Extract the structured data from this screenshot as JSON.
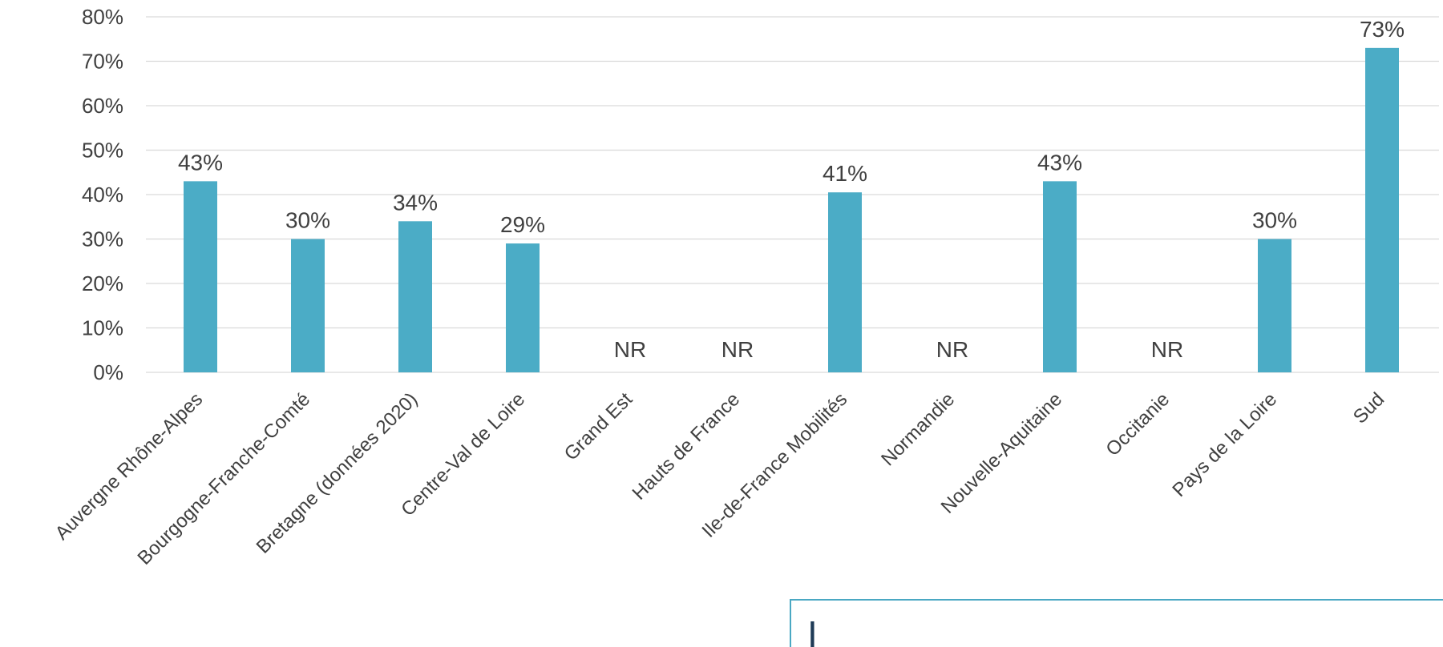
{
  "chart_data": {
    "type": "bar",
    "categories": [
      "Auvergne Rhône-Alpes",
      "Bourgogne-Franche-Comté",
      "Bretagne (données 2020)",
      "Centre-Val de Loire",
      "Grand Est",
      "Hauts de France",
      "Ile-de-France Mobilités",
      "Normandie",
      "Nouvelle-Aquitaine",
      "Occitanie",
      "Pays de la Loire",
      "Sud"
    ],
    "values": [
      43,
      30,
      34,
      29,
      null,
      null,
      40.5,
      null,
      43,
      null,
      30,
      73
    ],
    "data_labels": [
      "43%",
      "30%",
      "34%",
      "29%",
      "NR",
      "NR",
      "41%",
      "NR",
      "43%",
      "NR",
      "30%",
      "73%"
    ],
    "ylim": [
      0,
      80
    ],
    "yticks": [
      "0%",
      "10%",
      "20%",
      "30%",
      "40%",
      "50%",
      "60%",
      "70%",
      "80%"
    ],
    "grid": true,
    "bar_color": "#4bacc6"
  },
  "note": {
    "text": "I",
    "border_color": "#4aa8c3"
  }
}
